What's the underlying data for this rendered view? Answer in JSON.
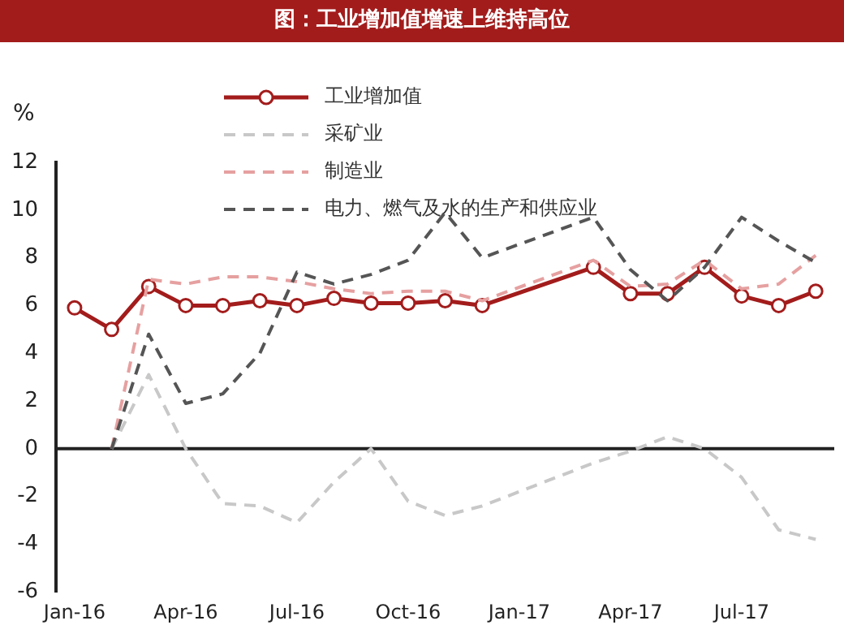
{
  "chart_data": {
    "type": "line",
    "title": "图：工业增加值增速上维持高位",
    "ylabel": "%",
    "categories": [
      "Jan-16",
      null,
      null,
      "Apr-16",
      null,
      null,
      "Jul-16",
      null,
      null,
      "Oct-16",
      null,
      null,
      "Jan-17",
      null,
      null,
      "Apr-17",
      null,
      null,
      "Jul-17",
      null,
      null
    ],
    "series": [
      {
        "name": "工业增加值",
        "color": "#a31c1c",
        "marker": "circle",
        "line_style": "solid",
        "values": [
          5.9,
          5.0,
          6.8,
          6.0,
          6.0,
          6.2,
          6.0,
          6.3,
          6.1,
          6.1,
          6.2,
          6.0,
          null,
          null,
          7.6,
          6.5,
          6.5,
          7.6,
          6.4,
          6.0,
          6.6
        ]
      },
      {
        "name": "采矿业",
        "color": "#c8c8c8",
        "marker": "none",
        "line_style": "dashed",
        "values": [
          null,
          0,
          3.1,
          0,
          -2.3,
          -2.4,
          -3.1,
          -1.4,
          0,
          -2.2,
          -2.8,
          -2.4,
          null,
          null,
          -0.6,
          -0.1,
          0.5,
          0,
          -1.2,
          -3.4,
          -3.8
        ]
      },
      {
        "name": "制造业",
        "color": "#e6a0a0",
        "marker": "none",
        "line_style": "dashed",
        "values": [
          null,
          0,
          7.1,
          6.9,
          7.2,
          7.2,
          7.0,
          6.7,
          6.5,
          6.6,
          6.6,
          6.2,
          null,
          null,
          7.9,
          6.8,
          6.9,
          7.9,
          6.7,
          6.9,
          8.1
        ]
      },
      {
        "name": "电力、燃气及水的生产和供应业",
        "color": "#555555",
        "marker": "none",
        "line_style": "dashed",
        "values": [
          null,
          0,
          4.8,
          1.9,
          2.3,
          4.0,
          7.4,
          6.9,
          7.3,
          7.9,
          9.9,
          8.0,
          null,
          null,
          9.7,
          7.5,
          6.2,
          7.6,
          9.7,
          8.7,
          7.8
        ]
      }
    ],
    "ref_lines": [
      {
        "axis": "y",
        "value": 0,
        "color": "#222222"
      }
    ],
    "ylim": [
      -6,
      12
    ],
    "yticks": [
      -6,
      -4,
      -2,
      0,
      2,
      4,
      6,
      8,
      10,
      12
    ],
    "grid": false,
    "legend": "top"
  }
}
